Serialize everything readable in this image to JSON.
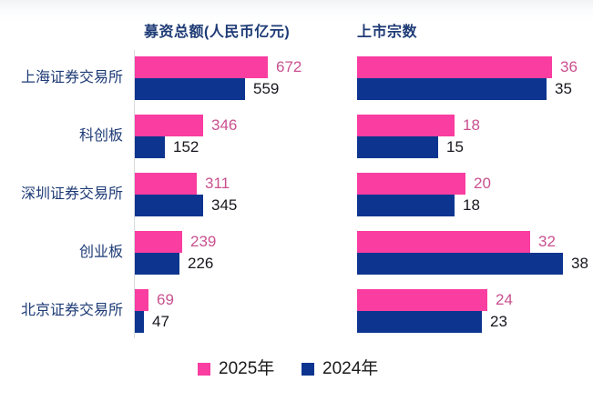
{
  "titles": {
    "left": "募资总额(人民币亿元)",
    "right": "上市宗数"
  },
  "categories": [
    "上海证券交易所",
    "科创板",
    "深圳证券交易所",
    "创业板",
    "北京证券交易所"
  ],
  "legend": {
    "items": [
      {
        "label": "2025年",
        "color": "#f93da1"
      },
      {
        "label": "2024年",
        "color": "#0d3590"
      }
    ]
  },
  "colors": {
    "bar_2025": "#f93da1",
    "bar_2024": "#0d3590",
    "value_2025_text": "#c9518f",
    "value_2024_text": "#17171f",
    "heading_text": "#1e3b76",
    "axis_line": "#d8dade"
  },
  "chart_data": [
    {
      "type": "bar",
      "orientation": "horizontal",
      "title": "募资总额(人民币亿元)",
      "categories": [
        "上海证券交易所",
        "科创板",
        "深圳证券交易所",
        "创业板",
        "北京证券交易所"
      ],
      "series": [
        {
          "name": "2025年",
          "values": [
            672,
            346,
            311,
            239,
            69
          ]
        },
        {
          "name": "2024年",
          "values": [
            559,
            152,
            345,
            226,
            47
          ]
        }
      ],
      "xlim": [
        0,
        672
      ],
      "value_labels": true,
      "grid": false,
      "legend_position": "bottom"
    },
    {
      "type": "bar",
      "orientation": "horizontal",
      "title": "上市宗数",
      "categories": [
        "上海证券交易所",
        "科创板",
        "深圳证券交易所",
        "创业板",
        "北京证券交易所"
      ],
      "series": [
        {
          "name": "2025年",
          "values": [
            36,
            18,
            20,
            32,
            24
          ]
        },
        {
          "name": "2024年",
          "values": [
            35,
            15,
            18,
            38,
            23
          ]
        }
      ],
      "xlim": [
        0,
        38
      ],
      "value_labels": true,
      "grid": false,
      "legend_position": "bottom"
    }
  ]
}
